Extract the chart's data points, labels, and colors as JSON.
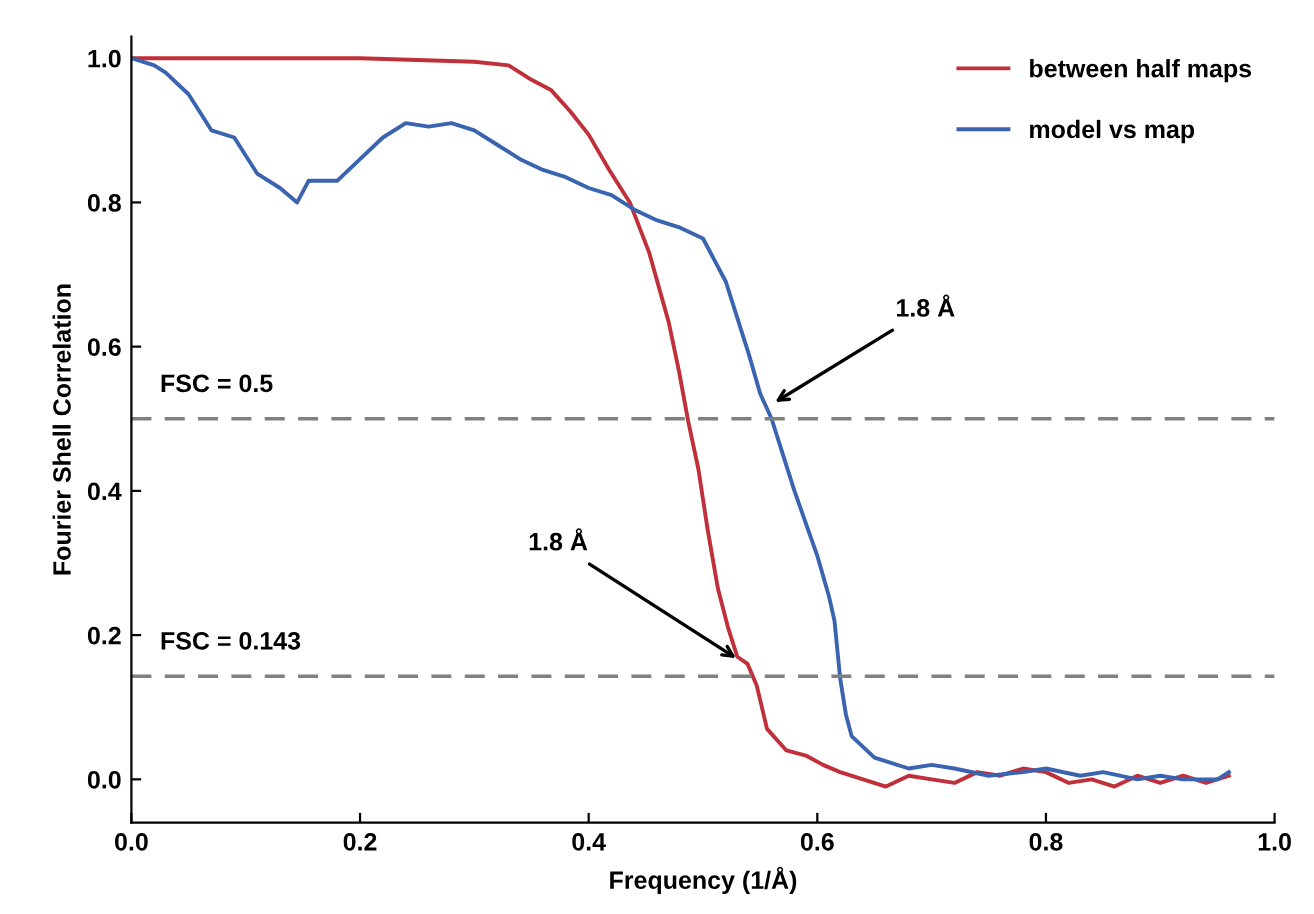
{
  "chart_data": {
    "type": "line",
    "xlabel": "Frequency (1/Å)",
    "ylabel": "Fourier Shell Correlation",
    "xlim": [
      0,
      1.0
    ],
    "ylim": [
      -0.06,
      1.03
    ],
    "xticks": [
      {
        "value": 0,
        "label": "0.0"
      },
      0.2,
      0.4,
      0.6,
      0.8,
      {
        "value": 1,
        "label": "1.0"
      }
    ],
    "yticks": [
      {
        "value": 0,
        "label": "0.0"
      },
      0.2,
      0.4,
      0.6,
      0.8,
      {
        "value": 1,
        "label": "1.0"
      }
    ],
    "grid": false,
    "legend": "top right",
    "line_style": "solid",
    "marker": "none",
    "series": [
      {
        "name": "between half maps",
        "color": "#c0303a",
        "x": [
          0,
          0.1,
          0.2,
          0.3,
          0.33,
          0.35,
          0.367,
          0.384,
          0.4,
          0.418,
          0.436,
          0.453,
          0.47,
          0.479,
          0.487,
          0.496,
          0.504,
          0.513,
          0.522,
          0.53,
          0.539,
          0.547,
          0.556,
          0.573,
          0.59,
          0.605,
          0.62,
          0.64,
          0.66,
          0.68,
          0.7,
          0.72,
          0.74,
          0.76,
          0.78,
          0.8,
          0.82,
          0.84,
          0.86,
          0.88,
          0.9,
          0.92,
          0.94,
          0.96
        ],
        "values": [
          1.0,
          1.0,
          1.0,
          0.995,
          0.99,
          0.97,
          0.956,
          0.926,
          0.894,
          0.845,
          0.8,
          0.73,
          0.634,
          0.566,
          0.497,
          0.43,
          0.347,
          0.265,
          0.21,
          0.17,
          0.16,
          0.13,
          0.07,
          0.04,
          0.033,
          0.02,
          0.01,
          0.0,
          -0.01,
          0.005,
          0.0,
          -0.005,
          0.01,
          0.005,
          0.015,
          0.01,
          -0.005,
          0.0,
          -0.01,
          0.005,
          -0.005,
          0.005,
          -0.005,
          0.005
        ]
      },
      {
        "name": "model vs map",
        "color": "#3a64b0",
        "x": [
          0,
          0.02,
          0.03,
          0.05,
          0.07,
          0.09,
          0.11,
          0.13,
          0.145,
          0.155,
          0.18,
          0.2,
          0.22,
          0.24,
          0.26,
          0.28,
          0.3,
          0.32,
          0.34,
          0.36,
          0.38,
          0.4,
          0.42,
          0.44,
          0.46,
          0.48,
          0.5,
          0.51,
          0.52,
          0.53,
          0.54,
          0.55,
          0.56,
          0.57,
          0.58,
          0.59,
          0.6,
          0.61,
          0.615,
          0.62,
          0.625,
          0.63,
          0.65,
          0.68,
          0.7,
          0.72,
          0.75,
          0.78,
          0.8,
          0.83,
          0.85,
          0.88,
          0.9,
          0.92,
          0.95,
          0.96
        ],
        "values": [
          1.0,
          0.99,
          0.98,
          0.95,
          0.9,
          0.89,
          0.84,
          0.82,
          0.8,
          0.83,
          0.83,
          0.86,
          0.89,
          0.91,
          0.905,
          0.91,
          0.9,
          0.88,
          0.86,
          0.845,
          0.835,
          0.82,
          0.81,
          0.79,
          0.775,
          0.765,
          0.75,
          0.72,
          0.69,
          0.64,
          0.59,
          0.535,
          0.5,
          0.45,
          0.4,
          0.355,
          0.31,
          0.255,
          0.22,
          0.14,
          0.09,
          0.06,
          0.03,
          0.015,
          0.02,
          0.015,
          0.005,
          0.01,
          0.015,
          0.005,
          0.01,
          0.0,
          0.005,
          0.0,
          0.0,
          0.01
        ]
      }
    ],
    "ref_lines": [
      {
        "axis": "y",
        "value": 0.5,
        "label": "FSC = 0.5",
        "color": "#808080",
        "line_style": "dashed"
      },
      {
        "axis": "y",
        "value": 0.143,
        "label": "FSC = 0.143",
        "color": "#808080",
        "line_style": "dashed"
      }
    ],
    "annotations": [
      {
        "text": "1.8 Å",
        "x": 0.559,
        "y": 0.519
      },
      {
        "text": "1.8 Å",
        "x": 0.533,
        "y": 0.164
      }
    ]
  }
}
